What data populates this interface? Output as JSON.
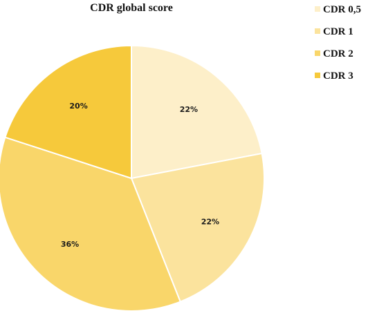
{
  "chart_data": {
    "type": "pie",
    "title": "CDR global score",
    "start_angle_deg": 0,
    "direction": "clockwise",
    "legend_position": "top-right",
    "slices": [
      {
        "label": "CDR 0,5",
        "value": 22,
        "value_label": "22%",
        "color": "#fdefc9"
      },
      {
        "label": "CDR 1",
        "value": 22,
        "value_label": "22%",
        "color": "#fbe39d"
      },
      {
        "label": "CDR 2",
        "value": 36,
        "value_label": "36%",
        "color": "#f9d66a"
      },
      {
        "label": "CDR 3",
        "value": 20,
        "value_label": "20%",
        "color": "#f6c93b"
      }
    ]
  }
}
